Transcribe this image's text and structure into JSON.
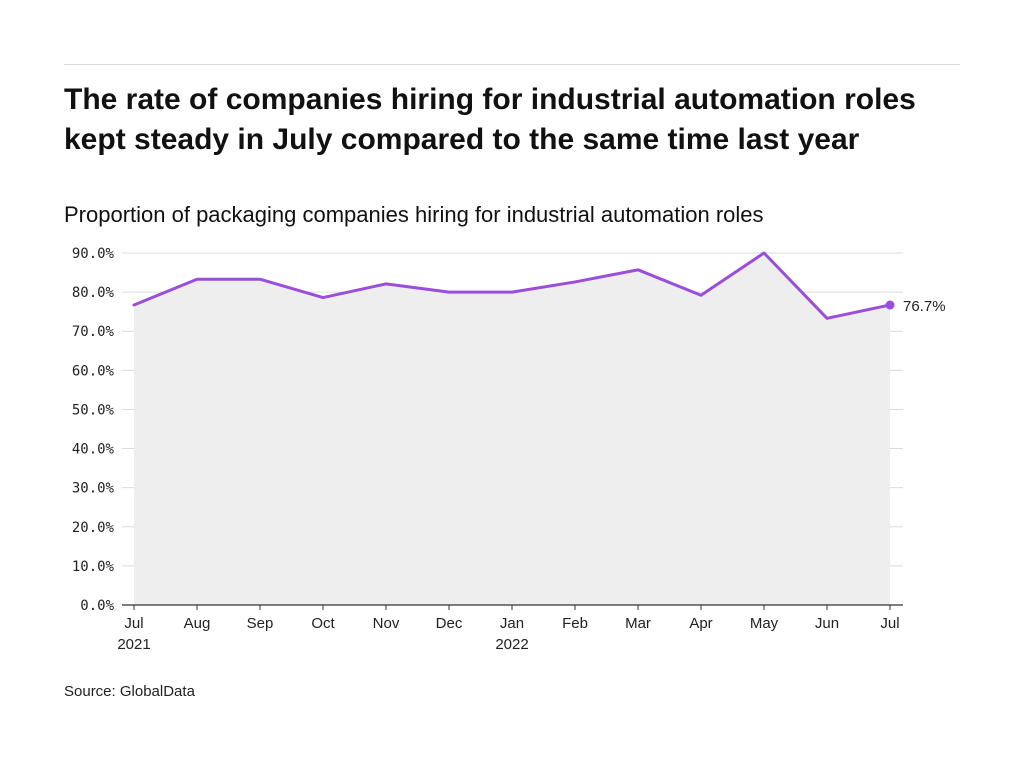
{
  "header": {
    "title": "The rate of companies hiring for industrial automation roles kept steady in July compared to the same time last year",
    "subtitle": "Proportion of packaging companies hiring for industrial automation roles"
  },
  "footer": {
    "source": "Source: GlobalData"
  },
  "colors": {
    "line": "#9b4ddb",
    "area": "#eeeeee",
    "grid": "#dcdcdc",
    "axis": "#333333"
  },
  "chart_data": {
    "type": "area",
    "title": "The rate of companies hiring for industrial automation roles kept steady in July compared to the same time last year",
    "subtitle": "Proportion of packaging companies hiring for industrial automation roles",
    "x": [
      "Jul 2021",
      "Aug 2021",
      "Sep 2021",
      "Oct 2021",
      "Nov 2021",
      "Dec 2021",
      "Jan 2022",
      "Feb 2022",
      "Mar 2022",
      "Apr 2022",
      "May 2022",
      "Jun 2022",
      "Jul 2022"
    ],
    "x_tick_labels": [
      {
        "month": "Jul",
        "year": "2021"
      },
      {
        "month": "Aug",
        "year": ""
      },
      {
        "month": "Sep",
        "year": ""
      },
      {
        "month": "Oct",
        "year": ""
      },
      {
        "month": "Nov",
        "year": ""
      },
      {
        "month": "Dec",
        "year": ""
      },
      {
        "month": "Jan",
        "year": "2022"
      },
      {
        "month": "Feb",
        "year": ""
      },
      {
        "month": "Mar",
        "year": ""
      },
      {
        "month": "Apr",
        "year": ""
      },
      {
        "month": "May",
        "year": ""
      },
      {
        "month": "Jun",
        "year": ""
      },
      {
        "month": "Jul",
        "year": ""
      }
    ],
    "series": [
      {
        "values": [
          76.7,
          83.3,
          83.3,
          78.6,
          82.1,
          80.0,
          80.0,
          82.6,
          85.7,
          79.2,
          90.0,
          73.3,
          76.7
        ]
      }
    ],
    "y_ticks": [
      0,
      10,
      20,
      30,
      40,
      50,
      60,
      70,
      80,
      90
    ],
    "y_tick_labels": [
      "0.0%",
      "10.0%",
      "20.0%",
      "30.0%",
      "40.0%",
      "50.0%",
      "60.0%",
      "70.0%",
      "80.0%",
      "90.0%"
    ],
    "ylim": [
      0,
      90
    ],
    "grid": true,
    "end_label": "76.7%",
    "xlabel": "",
    "ylabel": ""
  }
}
